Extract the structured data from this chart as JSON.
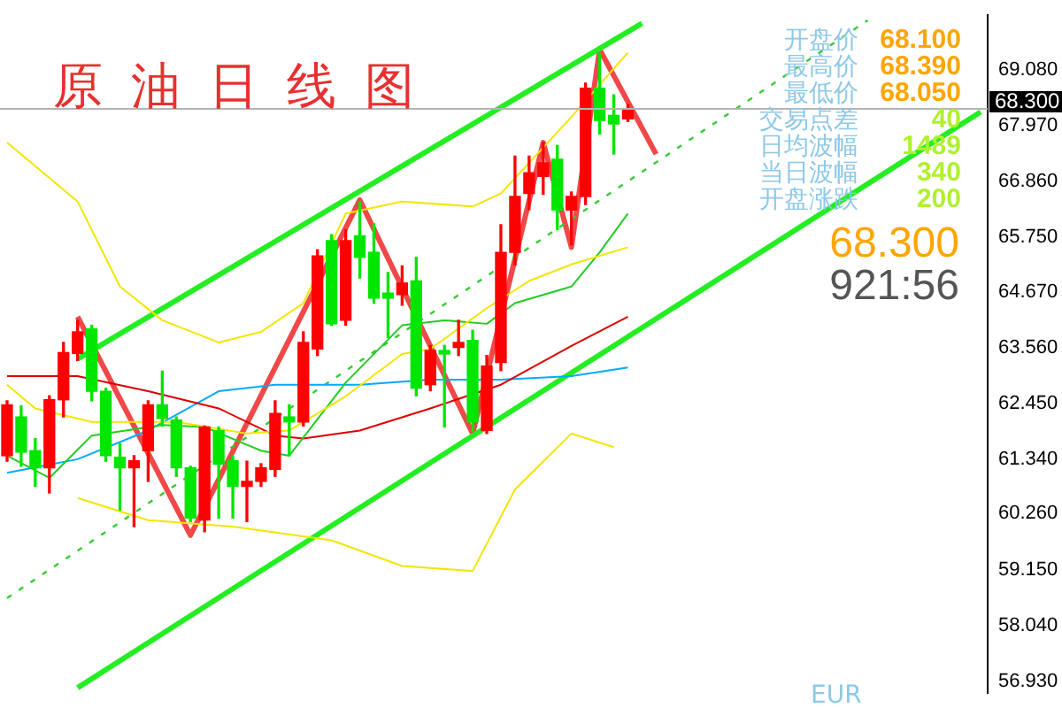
{
  "chart_data": {
    "type": "candlestick",
    "title": "原油日线图",
    "categories": [
      null,
      null,
      null,
      null,
      null,
      null,
      null,
      null,
      null,
      null,
      null,
      null,
      null,
      null,
      null,
      null,
      null,
      null,
      null,
      null,
      null,
      null,
      null,
      null,
      null,
      null,
      null,
      null,
      null,
      null,
      null,
      null,
      null,
      null,
      null,
      null,
      null,
      null,
      null,
      null,
      null,
      null,
      null,
      null,
      null,
      null,
      null,
      null,
      null,
      null,
      null,
      null,
      null,
      null,
      null,
      null,
      null,
      null,
      null,
      null,
      null,
      null,
      null,
      null,
      null,
      null,
      null,
      null,
      null,
      null
    ],
    "ohlc": [
      [
        61.41,
        62.5,
        61.3,
        62.42
      ],
      [
        62.18,
        62.4,
        61.2,
        61.48
      ],
      [
        61.51,
        61.75,
        60.8,
        61.17
      ],
      [
        61.17,
        62.6,
        60.67,
        62.52
      ],
      [
        62.52,
        63.66,
        62.18,
        63.46
      ],
      [
        63.44,
        64.1,
        63.3,
        63.87
      ],
      [
        63.93,
        64.0,
        62.5,
        62.69
      ],
      [
        62.69,
        62.75,
        61.3,
        61.41
      ],
      [
        61.38,
        61.65,
        60.33,
        61.17
      ],
      [
        61.17,
        61.41,
        60.0,
        61.31
      ],
      [
        61.51,
        62.5,
        60.9,
        62.42
      ],
      [
        62.42,
        63.09,
        62.0,
        62.15
      ],
      [
        62.12,
        62.18,
        61.0,
        61.17
      ],
      [
        61.17,
        61.2,
        60.1,
        60.17
      ],
      [
        60.13,
        62.0,
        59.9,
        61.98
      ],
      [
        61.91,
        61.98,
        60.17,
        61.24
      ],
      [
        61.31,
        61.4,
        60.17,
        60.8
      ],
      [
        60.8,
        61.3,
        60.1,
        60.9
      ],
      [
        60.9,
        61.25,
        60.8,
        61.17
      ],
      [
        61.14,
        62.5,
        61.0,
        62.25
      ],
      [
        62.18,
        62.42,
        61.41,
        62.08
      ],
      [
        62.08,
        63.87,
        62.0,
        63.66
      ],
      [
        63.53,
        65.5,
        63.4,
        65.38
      ],
      [
        65.68,
        65.8,
        64.0,
        64.03
      ],
      [
        64.1,
        65.9,
        64.0,
        65.68
      ],
      [
        65.78,
        66.45,
        64.94,
        65.35
      ],
      [
        65.45,
        66.02,
        64.44,
        64.54
      ],
      [
        64.64,
        65.05,
        63.76,
        64.54
      ],
      [
        64.61,
        65.18,
        64.4,
        64.84
      ],
      [
        64.88,
        65.35,
        62.6,
        62.75
      ],
      [
        62.82,
        63.6,
        62.7,
        63.5
      ],
      [
        63.5,
        63.6,
        61.98,
        63.43
      ],
      [
        63.56,
        64.1,
        63.4,
        63.66
      ],
      [
        63.7,
        63.9,
        61.9,
        62.08
      ],
      [
        61.91,
        63.4,
        61.85,
        63.19
      ],
      [
        63.26,
        66.0,
        63.1,
        65.45
      ],
      [
        65.45,
        67.36,
        65.2,
        66.56
      ],
      [
        66.62,
        67.36,
        66.3,
        67.03
      ],
      [
        66.96,
        67.63,
        66.6,
        67.23
      ],
      [
        67.3,
        67.57,
        65.9,
        66.29
      ],
      [
        66.29,
        66.65,
        65.6,
        66.56
      ],
      [
        66.56,
        68.81,
        66.4,
        68.71
      ],
      [
        68.71,
        69.4,
        67.8,
        68.07
      ],
      [
        68.17,
        68.58,
        67.4,
        68.0
      ],
      [
        68.1,
        68.39,
        68.05,
        68.3
      ],
      null,
      null,
      null,
      null,
      null,
      null,
      null,
      null,
      null,
      null,
      null,
      null,
      null,
      null,
      null,
      null,
      null,
      null,
      null,
      null,
      null,
      null,
      null,
      null,
      null
    ],
    "colors": [
      "#ff0000",
      "#00e600",
      "#00e600",
      "#ff0000",
      "#ff0000",
      "#ff0000",
      "#00e600",
      "#00e600",
      "#00e600",
      "#ff0000",
      "#ff0000",
      "#00e600",
      "#00e600",
      "#00e600",
      "#ff0000",
      "#00e600",
      "#00e600",
      "#ff0000",
      "#ff0000",
      "#ff0000",
      "#00e600",
      "#ff0000",
      "#ff0000",
      "#00e600",
      "#ff0000",
      "#00e600",
      "#00e600",
      "#00e600",
      "#ff0000",
      "#00e600",
      "#ff0000",
      "#00e600",
      "#ff0000",
      "#00e600",
      "#ff0000",
      "#ff0000",
      "#ff0000",
      "#ff0000",
      "#ff0000",
      "#00e600",
      "#ff0000",
      "#ff0000",
      "#00e600",
      "#00e600",
      "#ff0000",
      null,
      null,
      null,
      null,
      null,
      null,
      null,
      null,
      null,
      null,
      null,
      null,
      null,
      null,
      null,
      null,
      null,
      null,
      null,
      null,
      null,
      null,
      null,
      null,
      null
    ],
    "series": [
      {
        "type": "line",
        "color": "#f2e600",
        "values": [
          67.63,
          null,
          null,
          null,
          null,
          66.46,
          null,
          null,
          64.77,
          null,
          null,
          64.1,
          null,
          null,
          null,
          63.66,
          null,
          null,
          63.87,
          null,
          null,
          64.44,
          null,
          null,
          66.22,
          null,
          null,
          null,
          66.46,
          null,
          null,
          null,
          null,
          66.36,
          null,
          66.62,
          null,
          null,
          null,
          null,
          68.14,
          null,
          null,
          null,
          69.42,
          null,
          null,
          null,
          null,
          null,
          null,
          null,
          null,
          null,
          null,
          null,
          null,
          null,
          null,
          null,
          null,
          null,
          null,
          null,
          null,
          null,
          null,
          null,
          null,
          null
        ]
      },
      {
        "type": "line",
        "color": "#f2e600",
        "values": [
          62.82,
          null,
          62.35,
          null,
          null,
          null,
          62.08,
          null,
          null,
          null,
          null,
          null,
          62.08,
          null,
          null,
          null,
          null,
          61.85,
          null,
          null,
          61.91,
          null,
          null,
          null,
          62.59,
          null,
          null,
          null,
          63.43,
          null,
          63.53,
          null,
          null,
          null,
          64.34,
          null,
          null,
          64.88,
          null,
          null,
          65.21,
          null,
          null,
          null,
          65.55,
          null,
          null,
          null,
          null,
          null,
          null,
          null,
          null,
          null,
          null,
          null,
          null,
          null,
          null,
          null,
          null,
          null,
          null,
          null,
          null,
          null,
          null,
          null,
          null,
          null
        ]
      },
      {
        "type": "line",
        "color": "#f2e600",
        "values": [
          null,
          null,
          null,
          null,
          null,
          60.57,
          null,
          null,
          null,
          null,
          60.13,
          null,
          null,
          null,
          null,
          null,
          60.0,
          null,
          null,
          null,
          null,
          null,
          null,
          59.73,
          null,
          null,
          null,
          null,
          59.22,
          null,
          null,
          null,
          null,
          59.12,
          null,
          null,
          60.74,
          null,
          null,
          null,
          61.85,
          null,
          null,
          61.58,
          null,
          null,
          null,
          null,
          null,
          null,
          null,
          null,
          null,
          null,
          null,
          null,
          null,
          null,
          null,
          null,
          null,
          null,
          null,
          null,
          null,
          null,
          null,
          null,
          null,
          null
        ]
      },
      {
        "type": "line",
        "color": "#22cc22",
        "values": [
          61.41,
          null,
          null,
          60.97,
          null,
          null,
          61.81,
          null,
          null,
          null,
          null,
          62.02,
          null,
          null,
          61.98,
          null,
          null,
          null,
          61.51,
          null,
          61.41,
          null,
          null,
          null,
          62.86,
          null,
          null,
          null,
          64.0,
          null,
          null,
          64.1,
          null,
          null,
          64.03,
          null,
          64.44,
          null,
          null,
          null,
          64.77,
          null,
          65.45,
          null,
          66.22,
          null,
          null,
          null,
          null,
          null,
          null,
          null,
          null,
          null,
          null,
          null,
          null,
          null,
          null,
          null,
          null,
          null,
          null,
          null,
          null,
          null,
          null,
          null,
          null,
          null
        ]
      },
      {
        "type": "line",
        "color": "#dd0000",
        "values": [
          62.99,
          null,
          null,
          null,
          null,
          62.99,
          null,
          null,
          null,
          null,
          62.69,
          null,
          null,
          null,
          null,
          62.35,
          null,
          null,
          null,
          61.81,
          null,
          61.75,
          null,
          null,
          null,
          61.91,
          null,
          null,
          null,
          null,
          62.35,
          null,
          null,
          null,
          null,
          62.82,
          null,
          null,
          null,
          null,
          63.59,
          null,
          null,
          null,
          64.17,
          null,
          null,
          null,
          null,
          null,
          null,
          null,
          null,
          null,
          null,
          null,
          null,
          null,
          null,
          null,
          null,
          null,
          null,
          null,
          null,
          null,
          null,
          null,
          null,
          null
        ]
      },
      {
        "type": "line",
        "color": "#00aaff",
        "values": [
          61.07,
          null,
          null,
          null,
          null,
          61.34,
          null,
          null,
          null,
          null,
          61.91,
          null,
          null,
          null,
          null,
          62.69,
          null,
          null,
          null,
          62.82,
          null,
          null,
          null,
          null,
          null,
          62.82,
          null,
          null,
          null,
          null,
          62.92,
          null,
          null,
          null,
          null,
          62.92,
          null,
          null,
          null,
          null,
          62.99,
          null,
          null,
          null,
          63.16,
          null,
          null,
          null,
          null,
          null,
          null,
          null,
          null,
          null,
          null,
          null,
          null,
          null,
          null,
          null,
          null,
          null,
          null,
          null,
          null,
          null,
          null,
          null,
          null,
          null
        ]
      },
      {
        "type": "line",
        "color": "#22ee22",
        "values": [
          null,
          null,
          null,
          null,
          null,
          63.33,
          null,
          null,
          null,
          null,
          null,
          null,
          null,
          null,
          null,
          null,
          null,
          null,
          null,
          null,
          null,
          null,
          null,
          null,
          null,
          null,
          null,
          null,
          null,
          null,
          null,
          null,
          null,
          null,
          null,
          null,
          null,
          null,
          null,
          null,
          null,
          null,
          null,
          null,
          null,
          70.0,
          null,
          null,
          null,
          null,
          null,
          null,
          null,
          null,
          null,
          null,
          null,
          null,
          null,
          null,
          null,
          null,
          null,
          null,
          null,
          null,
          null,
          null,
          null,
          null
        ]
      },
      {
        "type": "line",
        "color": "#22ee22",
        "values": [
          null,
          null,
          null,
          null,
          null,
          56.8,
          null,
          null,
          null,
          null,
          null,
          null,
          null,
          null,
          null,
          null,
          null,
          null,
          null,
          null,
          null,
          null,
          null,
          null,
          null,
          null,
          null,
          null,
          null,
          null,
          null,
          null,
          null,
          null,
          null,
          null,
          null,
          null,
          null,
          null,
          null,
          null,
          null,
          null,
          null,
          null,
          null,
          null,
          null,
          null,
          null,
          null,
          null,
          null,
          null,
          null,
          null,
          null,
          null,
          null,
          null,
          null,
          null,
          null,
          null,
          null,
          null,
          null,
          null,
          68.24
        ]
      },
      {
        "type": "line",
        "color": "#33cc33",
        "line_style": "dashed",
        "values": [
          58.58,
          null,
          null,
          null,
          null,
          null,
          null,
          null,
          null,
          null,
          null,
          null,
          null,
          null,
          null,
          null,
          null,
          null,
          null,
          null,
          null,
          null,
          null,
          null,
          null,
          null,
          null,
          null,
          null,
          null,
          null,
          null,
          null,
          null,
          null,
          null,
          null,
          null,
          null,
          null,
          null,
          null,
          null,
          null,
          null,
          null,
          null,
          null,
          null,
          null,
          null,
          null,
          null,
          null,
          null,
          null,
          null,
          null,
          null,
          null,
          null,
          70.06,
          null,
          null,
          null,
          null,
          null,
          null,
          null,
          null
        ]
      },
      {
        "type": "line",
        "color": "#f04848",
        "values": [
          null,
          null,
          null,
          null,
          null,
          64.17,
          null,
          null,
          null,
          null,
          null,
          null,
          null,
          59.83,
          null,
          null,
          null,
          null,
          null,
          null,
          null,
          null,
          null,
          null,
          null,
          66.49,
          null,
          null,
          null,
          null,
          null,
          null,
          null,
          61.85,
          null,
          null,
          null,
          null,
          67.63,
          null,
          65.55,
          null,
          69.48,
          null,
          null,
          null,
          67.4,
          null,
          null,
          null,
          null,
          null,
          null,
          null,
          null,
          null,
          null,
          null,
          null,
          null,
          null,
          null,
          null,
          null,
          null,
          null,
          null,
          null,
          null,
          null
        ]
      }
    ],
    "ylim": [
      56.7,
      70.16
    ],
    "yticks": [
      {
        "value": 69.08,
        "label": "69.080"
      },
      {
        "value": 67.97,
        "label": "67.970"
      },
      {
        "value": 66.86,
        "label": "66.860"
      },
      {
        "value": 65.75,
        "label": "65.750"
      },
      {
        "value": 64.67,
        "label": "64.670"
      },
      {
        "value": 63.56,
        "label": "63.560"
      },
      {
        "value": 62.45,
        "label": "62.450"
      },
      {
        "value": 61.34,
        "label": "61.340"
      },
      {
        "value": 60.26,
        "label": "60.260"
      },
      {
        "value": 59.15,
        "label": "59.150"
      },
      {
        "value": 58.04,
        "label": "58.040"
      },
      {
        "value": 56.93,
        "label": "56.930"
      }
    ],
    "ref_lines": [
      {
        "axis": "y",
        "value": 68.3,
        "label": "68.300",
        "color": "#b4b4b4"
      }
    ],
    "tick_labels": "y",
    "annotations": [
      "开盘价 68.100",
      "最高价 68.390",
      "最低价 68.050",
      "交易点差 40",
      "日均波幅 1489",
      "当日波幅 340",
      "开盘涨跌 200",
      "68.300",
      "921:56",
      "EUR"
    ]
  }
}
